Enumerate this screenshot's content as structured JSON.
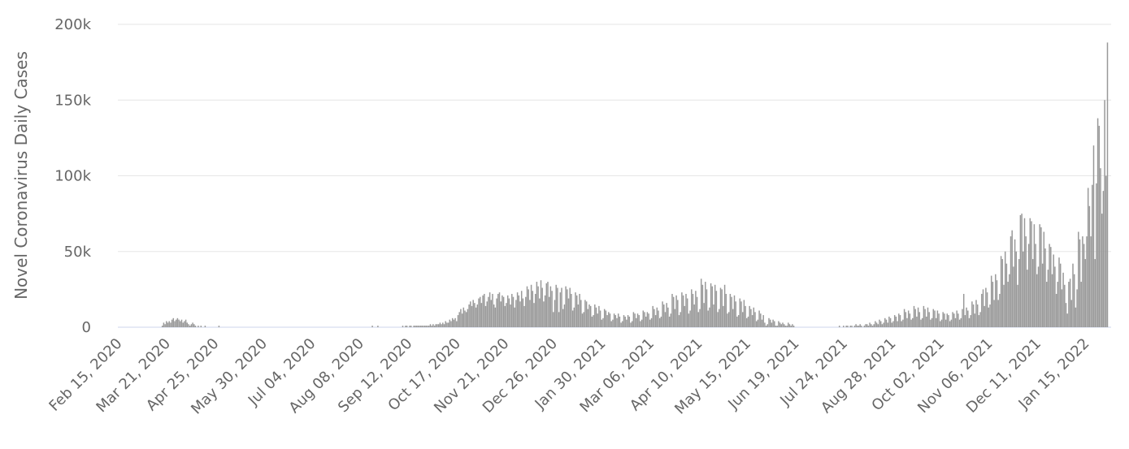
{
  "chart_data": {
    "type": "bar",
    "y_label": "Novel Coronavirus Daily Cases",
    "color": "#999999",
    "grid": true,
    "ylim": [
      0,
      200000
    ],
    "yticks": [
      0,
      {
        "value": 50000,
        "label": "50k"
      },
      {
        "value": 100000,
        "label": "100k"
      },
      {
        "value": 150000,
        "label": "150k"
      },
      {
        "value": 200000,
        "label": "200k"
      }
    ],
    "categories": [
      "Feb 15, 2020",
      null,
      null,
      null,
      null,
      null,
      null,
      null,
      null,
      null,
      null,
      null,
      null,
      null,
      null,
      null,
      null,
      null,
      null,
      null,
      null,
      null,
      null,
      null,
      null,
      null,
      null,
      null,
      null,
      null,
      null,
      null,
      null,
      null,
      null,
      "Mar 21, 2020",
      null,
      null,
      null,
      null,
      null,
      null,
      null,
      null,
      null,
      null,
      null,
      null,
      null,
      null,
      null,
      null,
      null,
      null,
      null,
      null,
      null,
      null,
      null,
      null,
      null,
      null,
      null,
      null,
      null,
      null,
      null,
      null,
      null,
      null,
      "Apr 25, 2020",
      null,
      null,
      null,
      null,
      null,
      null,
      null,
      null,
      null,
      null,
      null,
      null,
      null,
      null,
      null,
      null,
      null,
      null,
      null,
      null,
      null,
      null,
      null,
      null,
      null,
      null,
      null,
      null,
      null,
      null,
      null,
      null,
      null,
      null,
      "May 30, 2020",
      null,
      null,
      null,
      null,
      null,
      null,
      null,
      null,
      null,
      null,
      null,
      null,
      null,
      null,
      null,
      null,
      null,
      null,
      null,
      null,
      null,
      null,
      null,
      null,
      null,
      null,
      null,
      null,
      null,
      null,
      null,
      null,
      null,
      null,
      "Jul 04, 2020",
      null,
      null,
      null,
      null,
      null,
      null,
      null,
      null,
      null,
      null,
      null,
      null,
      null,
      null,
      null,
      null,
      null,
      null,
      null,
      null,
      null,
      null,
      null,
      null,
      null,
      null,
      null,
      null,
      null,
      null,
      null,
      null,
      null,
      null,
      "Aug 08, 2020",
      null,
      null,
      null,
      null,
      null,
      null,
      null,
      null,
      null,
      null,
      null,
      null,
      null,
      null,
      null,
      null,
      null,
      null,
      null,
      null,
      null,
      null,
      null,
      null,
      null,
      null,
      null,
      null,
      null,
      null,
      null,
      null,
      null,
      null,
      "Sep 12, 2020",
      null,
      null,
      null,
      null,
      null,
      null,
      null,
      null,
      null,
      null,
      null,
      null,
      null,
      null,
      null,
      null,
      null,
      null,
      null,
      null,
      null,
      null,
      null,
      null,
      null,
      null,
      null,
      null,
      null,
      null,
      null,
      null,
      null,
      null,
      "Oct 17, 2020",
      null,
      null,
      null,
      null,
      null,
      null,
      null,
      null,
      null,
      null,
      null,
      null,
      null,
      null,
      null,
      null,
      null,
      null,
      null,
      null,
      null,
      null,
      null,
      null,
      null,
      null,
      null,
      null,
      null,
      null,
      null,
      null,
      null,
      null,
      "Nov 21, 2020",
      null,
      null,
      null,
      null,
      null,
      null,
      null,
      null,
      null,
      null,
      null,
      null,
      null,
      null,
      null,
      null,
      null,
      null,
      null,
      null,
      null,
      null,
      null,
      null,
      null,
      null,
      null,
      null,
      null,
      null,
      null,
      null,
      null,
      null,
      "Dec 26, 2020",
      null,
      null,
      null,
      null,
      null,
      null,
      null,
      null,
      null,
      null,
      null,
      null,
      null,
      null,
      null,
      null,
      null,
      null,
      null,
      null,
      null,
      null,
      null,
      null,
      null,
      null,
      null,
      null,
      null,
      null,
      null,
      null,
      null,
      null,
      "Jan 30, 2021",
      null,
      null,
      null,
      null,
      null,
      null,
      null,
      null,
      null,
      null,
      null,
      null,
      null,
      null,
      null,
      null,
      null,
      null,
      null,
      null,
      null,
      null,
      null,
      null,
      null,
      null,
      null,
      null,
      null,
      null,
      null,
      null,
      null,
      null,
      "Mar 06, 2021",
      null,
      null,
      null,
      null,
      null,
      null,
      null,
      null,
      null,
      null,
      null,
      null,
      null,
      null,
      null,
      null,
      null,
      null,
      null,
      null,
      null,
      null,
      null,
      null,
      null,
      null,
      null,
      null,
      null,
      null,
      null,
      null,
      null,
      null,
      "Apr 10, 2021",
      null,
      null,
      null,
      null,
      null,
      null,
      null,
      null,
      null,
      null,
      null,
      null,
      null,
      null,
      null,
      null,
      null,
      null,
      null,
      null,
      null,
      null,
      null,
      null,
      null,
      null,
      null,
      null,
      null,
      null,
      null,
      null,
      null,
      null,
      "May 15, 2021",
      null,
      null,
      null,
      null,
      null,
      null,
      null,
      null,
      null,
      null,
      null,
      null,
      null,
      null,
      null,
      null,
      null,
      null,
      null,
      null,
      null,
      null,
      null,
      null,
      null,
      null,
      null,
      null,
      null,
      null,
      null,
      null,
      null,
      null,
      "Jun 19, 2021",
      null,
      null,
      null,
      null,
      null,
      null,
      null,
      null,
      null,
      null,
      null,
      null,
      null,
      null,
      null,
      null,
      null,
      null,
      null,
      null,
      null,
      null,
      null,
      null,
      null,
      null,
      null,
      null,
      null,
      null,
      null,
      null,
      null,
      null,
      "Jul 24, 2021",
      null,
      null,
      null,
      null,
      null,
      null,
      null,
      null,
      null,
      null,
      null,
      null,
      null,
      null,
      null,
      null,
      null,
      null,
      null,
      null,
      null,
      null,
      null,
      null,
      null,
      null,
      null,
      null,
      null,
      null,
      null,
      null,
      null,
      null,
      "Aug 28, 2021",
      null,
      null,
      null,
      null,
      null,
      null,
      null,
      null,
      null,
      null,
      null,
      null,
      null,
      null,
      null,
      null,
      null,
      null,
      null,
      null,
      null,
      null,
      null,
      null,
      null,
      null,
      null,
      null,
      null,
      null,
      null,
      null,
      null,
      null,
      "Oct 02, 2021",
      null,
      null,
      null,
      null,
      null,
      null,
      null,
      null,
      null,
      null,
      null,
      null,
      null,
      null,
      null,
      null,
      null,
      null,
      null,
      null,
      null,
      null,
      null,
      null,
      null,
      null,
      null,
      null,
      null,
      null,
      null,
      null,
      null,
      null,
      "Nov 06, 2021",
      null,
      null,
      null,
      null,
      null,
      null,
      null,
      null,
      null,
      null,
      null,
      null,
      null,
      null,
      null,
      null,
      null,
      null,
      null,
      null,
      null,
      null,
      null,
      null,
      null,
      null,
      null,
      null,
      null,
      null,
      null,
      null,
      null,
      null,
      "Dec 11, 2021",
      null,
      null,
      null,
      null,
      null,
      null,
      null,
      null,
      null,
      null,
      null,
      null,
      null,
      null,
      null,
      null,
      null,
      null,
      null,
      null,
      null,
      null,
      null,
      null,
      null,
      null,
      null,
      null,
      null,
      null,
      null,
      null,
      null,
      null,
      "Jan 15, 2022",
      null,
      null,
      null,
      null,
      null,
      null,
      null,
      null,
      null,
      null,
      null,
      null,
      null,
      null,
      null
    ],
    "values": [
      0,
      0,
      0,
      0,
      0,
      0,
      0,
      0,
      0,
      0,
      0,
      0,
      0,
      0,
      0,
      0,
      0,
      0,
      0,
      0,
      0,
      0,
      0,
      0,
      0,
      0,
      0,
      0,
      0,
      0,
      0,
      1000,
      3000,
      2000,
      4000,
      3000,
      4000,
      3000,
      5000,
      6000,
      4000,
      5000,
      6000,
      5000,
      4000,
      5000,
      3000,
      4000,
      5000,
      3000,
      2000,
      1000,
      2000,
      3000,
      2000,
      1000,
      0,
      1000,
      0,
      1000,
      0,
      0,
      1000,
      0,
      0,
      0,
      0,
      0,
      0,
      0,
      0,
      0,
      1000,
      0,
      0,
      0,
      0,
      0,
      0,
      0,
      0,
      0,
      0,
      0,
      0,
      0,
      0,
      0,
      0,
      0,
      0,
      0,
      0,
      0,
      0,
      0,
      0,
      0,
      0,
      0,
      0,
      0,
      0,
      0,
      0,
      0,
      0,
      0,
      0,
      0,
      0,
      0,
      0,
      0,
      0,
      0,
      0,
      0,
      0,
      0,
      0,
      0,
      0,
      0,
      0,
      0,
      0,
      0,
      0,
      0,
      0,
      0,
      0,
      0,
      0,
      0,
      0,
      0,
      0,
      0,
      0,
      0,
      0,
      0,
      0,
      0,
      0,
      0,
      0,
      0,
      0,
      0,
      0,
      0,
      0,
      0,
      0,
      0,
      0,
      0,
      0,
      0,
      0,
      0,
      0,
      0,
      0,
      0,
      0,
      0,
      0,
      0,
      0,
      0,
      0,
      0,
      0,
      0,
      0,
      0,
      0,
      0,
      0,
      1000,
      0,
      0,
      0,
      1000,
      0,
      0,
      0,
      0,
      0,
      0,
      0,
      0,
      0,
      0,
      0,
      0,
      0,
      0,
      0,
      0,
      0,
      1000,
      0,
      1000,
      1000,
      0,
      1000,
      1000,
      0,
      1000,
      1000,
      1000,
      1000,
      1000,
      1000,
      1000,
      1000,
      1000,
      1000,
      1000,
      1000,
      2000,
      1000,
      2000,
      1000,
      2000,
      2000,
      2000,
      3000,
      2000,
      3000,
      2000,
      4000,
      3000,
      3000,
      5000,
      4000,
      6000,
      5000,
      6000,
      4000,
      8000,
      10000,
      12000,
      9000,
      13000,
      11000,
      10000,
      12000,
      15000,
      17000,
      14000,
      18000,
      16000,
      13000,
      15000,
      19000,
      20000,
      16000,
      21000,
      22000,
      14000,
      17000,
      20000,
      23000,
      18000,
      22000,
      15000,
      13000,
      19000,
      22000,
      23000,
      17000,
      21000,
      20000,
      14000,
      16000,
      21000,
      19000,
      15000,
      22000,
      20000,
      13000,
      18000,
      23000,
      21000,
      17000,
      24000,
      19000,
      14000,
      20000,
      27000,
      25000,
      18000,
      28000,
      24000,
      16000,
      22000,
      30000,
      27000,
      19000,
      31000,
      26000,
      17000,
      21000,
      29000,
      30000,
      20000,
      27000,
      24000,
      10000,
      18000,
      28000,
      26000,
      10000,
      23000,
      26000,
      12000,
      15000,
      27000,
      25000,
      19000,
      26000,
      22000,
      11000,
      13000,
      23000,
      21000,
      15000,
      22000,
      18000,
      9000,
      10000,
      18000,
      17000,
      12000,
      15000,
      14000,
      7000,
      8000,
      15000,
      13000,
      9000,
      14000,
      11000,
      5000,
      6000,
      12000,
      11000,
      8000,
      10000,
      9000,
      4000,
      5000,
      9000,
      8000,
      6000,
      9000,
      7000,
      3000,
      4000,
      8000,
      7000,
      5000,
      8000,
      7000,
      3000,
      4000,
      10000,
      9000,
      6000,
      9000,
      8000,
      4000,
      5000,
      11000,
      10000,
      7000,
      10000,
      9000,
      5000,
      6000,
      14000,
      12000,
      8000,
      13000,
      11000,
      6000,
      7000,
      17000,
      15000,
      10000,
      16000,
      13000,
      7000,
      9000,
      22000,
      20000,
      12000,
      21000,
      18000,
      8000,
      10000,
      23000,
      21000,
      14000,
      22000,
      19000,
      9000,
      11000,
      25000,
      22000,
      15000,
      24000,
      20000,
      10000,
      12000,
      32000,
      28000,
      16000,
      30000,
      25000,
      11000,
      13000,
      29000,
      27000,
      15000,
      28000,
      24000,
      10000,
      12000,
      26000,
      25000,
      14000,
      28000,
      22000,
      9000,
      10000,
      22000,
      20000,
      12000,
      21000,
      17000,
      7000,
      8000,
      19000,
      17000,
      10000,
      18000,
      14000,
      6000,
      7000,
      14000,
      12000,
      8000,
      13000,
      10000,
      4000,
      5000,
      11000,
      9000,
      5000,
      8000,
      3000,
      1000,
      2000,
      6000,
      5000,
      3000,
      5000,
      4000,
      1000,
      1000,
      4000,
      3000,
      2000,
      3000,
      2000,
      1000,
      1000,
      3000,
      2000,
      1000,
      2000,
      1000,
      0,
      0,
      0,
      0,
      0,
      0,
      0,
      0,
      0,
      0,
      0,
      0,
      0,
      0,
      0,
      0,
      0,
      0,
      0,
      0,
      0,
      0,
      0,
      0,
      0,
      0,
      0,
      0,
      0,
      0,
      0,
      0,
      1000,
      0,
      0,
      1000,
      0,
      1000,
      1000,
      0,
      1000,
      1000,
      0,
      1000,
      2000,
      1000,
      1000,
      2000,
      1000,
      0,
      1000,
      2000,
      2000,
      1000,
      3000,
      2000,
      1000,
      2000,
      4000,
      3000,
      2000,
      5000,
      4000,
      2000,
      3000,
      6000,
      5000,
      3000,
      7000,
      6000,
      3000,
      4000,
      8000,
      7000,
      4000,
      9000,
      8000,
      4000,
      5000,
      12000,
      10000,
      6000,
      11000,
      9000,
      5000,
      6000,
      14000,
      12000,
      7000,
      13000,
      10000,
      5000,
      6000,
      14000,
      12000,
      7000,
      13000,
      10000,
      5000,
      6000,
      12000,
      11000,
      6000,
      11000,
      9000,
      4000,
      5000,
      10000,
      9000,
      5000,
      9000,
      8000,
      4000,
      5000,
      10000,
      9000,
      6000,
      11000,
      9000,
      5000,
      6000,
      12000,
      22000,
      8000,
      13000,
      11000,
      6000,
      8000,
      17000,
      15000,
      9000,
      18000,
      15000,
      8000,
      10000,
      22000,
      25000,
      14000,
      26000,
      23000,
      13000,
      15000,
      34000,
      30000,
      18000,
      35000,
      31000,
      18000,
      22000,
      47000,
      45000,
      28000,
      50000,
      42000,
      30000,
      35000,
      60000,
      64000,
      40000,
      58000,
      50000,
      28000,
      45000,
      74000,
      75000,
      50000,
      72000,
      60000,
      38000,
      55000,
      72000,
      70000,
      45000,
      68000,
      55000,
      35000,
      40000,
      68000,
      66000,
      42000,
      63000,
      52000,
      30000,
      38000,
      55000,
      53000,
      35000,
      48000,
      40000,
      22000,
      30000,
      46000,
      42000,
      25000,
      36000,
      28000,
      16000,
      9000,
      30000,
      32000,
      18000,
      42000,
      35000,
      13000,
      25000,
      63000,
      58000,
      30000,
      60000,
      55000,
      45000,
      60000,
      92000,
      80000,
      60000,
      94000,
      120000,
      45000,
      95000,
      138000,
      133000,
      105000,
      75000,
      90000,
      150000,
      100000,
      188000
    ]
  }
}
